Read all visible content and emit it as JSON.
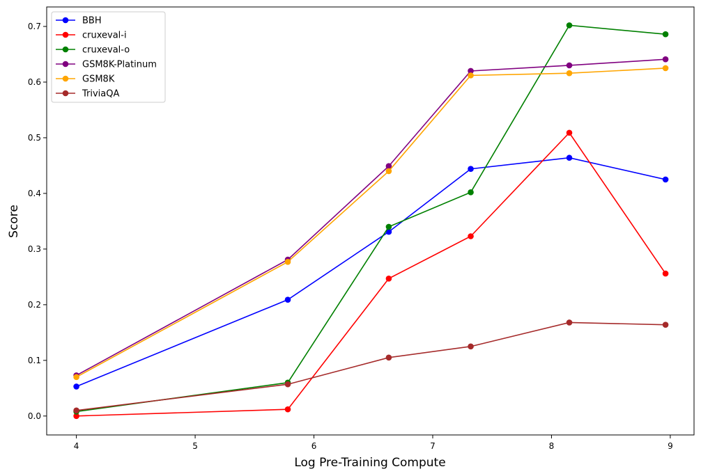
{
  "chart_data": {
    "type": "line",
    "title": "",
    "xlabel": "Log Pre-Training Compute",
    "ylabel": "Score",
    "x": [
      4.0,
      5.78,
      6.63,
      7.32,
      8.15,
      8.96
    ],
    "xlim": [
      3.75,
      9.2
    ],
    "ylim": [
      -0.034,
      0.735
    ],
    "xticks": [
      4,
      5,
      6,
      7,
      8,
      9
    ],
    "yticks": [
      0.0,
      0.1,
      0.2,
      0.3,
      0.4,
      0.5,
      0.6,
      0.7
    ],
    "xtick_labels": [
      "4",
      "5",
      "6",
      "7",
      "8",
      "9"
    ],
    "ytick_labels": [
      "0.0",
      "0.1",
      "0.2",
      "0.3",
      "0.4",
      "0.5",
      "0.6",
      "0.7"
    ],
    "grid": false,
    "legend_position": "top-left",
    "series": [
      {
        "name": "BBH",
        "color": "#0000ff",
        "values": [
          0.053,
          0.209,
          0.331,
          0.444,
          0.464,
          0.425
        ]
      },
      {
        "name": "cruxeval-i",
        "color": "#ff0000",
        "values": [
          0.0,
          0.012,
          0.247,
          0.323,
          0.509,
          0.256
        ]
      },
      {
        "name": "cruxeval-o",
        "color": "#008000",
        "values": [
          0.008,
          0.06,
          0.34,
          0.402,
          0.702,
          0.686
        ]
      },
      {
        "name": "GSM8K-Platinum",
        "color": "#800080",
        "values": [
          0.073,
          0.281,
          0.449,
          0.62,
          0.63,
          0.641
        ]
      },
      {
        "name": "GSM8K",
        "color": "#ffa500",
        "values": [
          0.07,
          0.277,
          0.44,
          0.612,
          0.616,
          0.625
        ]
      },
      {
        "name": "TriviaQA",
        "color": "#a52a2a",
        "values": [
          0.01,
          0.057,
          0.105,
          0.125,
          0.168,
          0.164
        ]
      }
    ]
  }
}
